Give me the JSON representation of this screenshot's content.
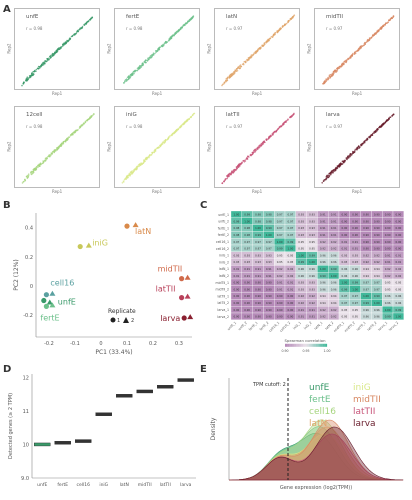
{
  "panel_letters": [
    "A",
    "B",
    "C",
    "D",
    "E"
  ],
  "chart_data": [
    {
      "panel": "A",
      "type": "scatter",
      "facets": [
        {
          "label": "unfE",
          "r_label": "r = 0.98",
          "color": "#3a9a6a"
        },
        {
          "label": "fertE",
          "r_label": "r = 0.98",
          "color": "#6cc08b"
        },
        {
          "label": "latN",
          "r_label": "r = 0.97",
          "color": "#e0a56b"
        },
        {
          "label": "midTII",
          "r_label": "r = 0.97",
          "color": "#d88863"
        },
        {
          "label": "12cell",
          "r_label": "r = 0.98",
          "color": "#a7d57f"
        },
        {
          "label": "iniG",
          "r_label": "r = 0.98",
          "color": "#d9e88a"
        },
        {
          "label": "latTII",
          "r_label": "r = 0.97",
          "color": "#c8567a"
        },
        {
          "label": "larva",
          "r_label": "r = 0.97",
          "color": "#6a1f2e"
        }
      ],
      "xlabel": "Rep1",
      "ylabel": "Rep2"
    },
    {
      "panel": "B",
      "type": "scatter",
      "xlabel": "PC1 (33.4%)",
      "ylabel": "PC2 (12%)",
      "xticks": [
        -0.2,
        -0.1,
        0.0,
        0.1,
        0.2,
        0.3
      ],
      "yticks": [
        0.4,
        0.2,
        0.0,
        -0.2
      ],
      "xlim": [
        -0.25,
        0.35
      ],
      "ylim": [
        -0.35,
        0.5
      ],
      "legend": {
        "title": "Replicate",
        "items": [
          "1",
          "2"
        ]
      },
      "groups": [
        {
          "name": "iniG",
          "color": "#c8c85a",
          "points": [
            [
              -0.08,
              0.27
            ],
            [
              -0.07,
              0.28
            ]
          ]
        },
        {
          "name": "latN",
          "color": "#d98a4a",
          "points": [
            [
              0.1,
              0.41
            ],
            [
              0.11,
              0.42
            ]
          ]
        },
        {
          "name": "midTII",
          "color": "#d06a4a",
          "points": [
            [
              0.31,
              0.05
            ],
            [
              0.31,
              0.06
            ]
          ]
        },
        {
          "name": "latTII",
          "color": "#b8405a",
          "points": [
            [
              0.31,
              -0.08
            ],
            [
              0.31,
              -0.07
            ]
          ]
        },
        {
          "name": "larva",
          "color": "#8a2030",
          "points": [
            [
              0.32,
              -0.22
            ],
            [
              0.32,
              -0.21
            ]
          ]
        },
        {
          "name": "cell16",
          "color": "#5aa0a0",
          "points": [
            [
              -0.21,
              -0.06
            ],
            [
              -0.21,
              -0.05
            ]
          ]
        },
        {
          "name": "unfE",
          "color": "#3a9a6a",
          "points": [
            [
              -0.22,
              -0.1
            ],
            [
              -0.22,
              -0.11
            ]
          ]
        },
        {
          "name": "fertE",
          "color": "#6cc08b",
          "points": [
            [
              -0.21,
              -0.14
            ],
            [
              -0.21,
              -0.13
            ]
          ]
        }
      ]
    },
    {
      "panel": "C",
      "type": "heatmap",
      "legend_title": "Spearman correlation",
      "legend_ticks": [
        "0.90",
        "0.95",
        "1.00"
      ],
      "rows": [
        "unfE_1",
        "unfE_2",
        "fertE_1",
        "fertE_2",
        "cell16_1",
        "cell16_2",
        "iniG_1",
        "iniG_2",
        "latN_1",
        "latN_2",
        "midTII_1",
        "midTII_2",
        "latTII_1",
        "latTII_2",
        "larva_1",
        "larva_2"
      ],
      "values": [
        [
          1.0,
          0.99,
          0.98,
          0.98,
          0.97,
          0.97,
          0.93,
          0.93,
          0.91,
          0.91,
          0.9,
          0.9,
          0.9,
          0.9,
          0.9,
          0.9
        ],
        [
          0.99,
          1.0,
          0.98,
          0.98,
          0.97,
          0.97,
          0.93,
          0.93,
          0.91,
          0.91,
          0.9,
          0.9,
          0.9,
          0.9,
          0.9,
          0.9
        ],
        [
          0.98,
          0.98,
          1.0,
          0.99,
          0.97,
          0.97,
          0.93,
          0.93,
          0.91,
          0.91,
          0.9,
          0.9,
          0.9,
          0.9,
          0.9,
          0.9
        ],
        [
          0.98,
          0.98,
          0.99,
          1.0,
          0.97,
          0.97,
          0.93,
          0.93,
          0.91,
          0.91,
          0.9,
          0.9,
          0.9,
          0.9,
          0.9,
          0.9
        ],
        [
          0.97,
          0.97,
          0.97,
          0.97,
          1.0,
          0.99,
          0.95,
          0.95,
          0.92,
          0.92,
          0.91,
          0.91,
          0.9,
          0.9,
          0.9,
          0.9
        ],
        [
          0.97,
          0.97,
          0.97,
          0.97,
          0.99,
          1.0,
          0.95,
          0.95,
          0.92,
          0.92,
          0.91,
          0.91,
          0.9,
          0.9,
          0.9,
          0.9
        ],
        [
          0.93,
          0.93,
          0.93,
          0.93,
          0.95,
          0.95,
          1.0,
          0.99,
          0.96,
          0.96,
          0.93,
          0.93,
          0.92,
          0.92,
          0.91,
          0.91
        ],
        [
          0.93,
          0.93,
          0.93,
          0.93,
          0.95,
          0.95,
          0.99,
          1.0,
          0.96,
          0.96,
          0.93,
          0.93,
          0.92,
          0.92,
          0.91,
          0.91
        ],
        [
          0.91,
          0.91,
          0.91,
          0.91,
          0.92,
          0.92,
          0.96,
          0.96,
          1.0,
          0.99,
          0.96,
          0.96,
          0.94,
          0.94,
          0.92,
          0.92
        ],
        [
          0.91,
          0.91,
          0.91,
          0.91,
          0.92,
          0.92,
          0.96,
          0.96,
          0.99,
          1.0,
          0.96,
          0.96,
          0.94,
          0.94,
          0.92,
          0.92
        ],
        [
          0.9,
          0.9,
          0.9,
          0.9,
          0.91,
          0.91,
          0.93,
          0.93,
          0.96,
          0.96,
          1.0,
          0.99,
          0.97,
          0.97,
          0.95,
          0.95
        ],
        [
          0.9,
          0.9,
          0.9,
          0.9,
          0.91,
          0.91,
          0.93,
          0.93,
          0.96,
          0.96,
          0.99,
          1.0,
          0.97,
          0.97,
          0.95,
          0.95
        ],
        [
          0.9,
          0.9,
          0.9,
          0.9,
          0.9,
          0.9,
          0.92,
          0.92,
          0.94,
          0.94,
          0.97,
          0.97,
          1.0,
          0.99,
          0.96,
          0.96
        ],
        [
          0.9,
          0.9,
          0.9,
          0.9,
          0.9,
          0.9,
          0.92,
          0.92,
          0.94,
          0.94,
          0.97,
          0.97,
          0.99,
          1.0,
          0.96,
          0.96
        ],
        [
          0.9,
          0.9,
          0.9,
          0.9,
          0.9,
          0.9,
          0.91,
          0.91,
          0.92,
          0.92,
          0.95,
          0.95,
          0.96,
          0.96,
          1.0,
          0.99
        ],
        [
          0.9,
          0.9,
          0.9,
          0.9,
          0.9,
          0.9,
          0.91,
          0.91,
          0.92,
          0.92,
          0.95,
          0.95,
          0.96,
          0.96,
          0.99,
          1.0
        ]
      ]
    },
    {
      "panel": "D",
      "type": "bar",
      "ylabel": "Detected genes (≥ 2 TPM)",
      "categories": [
        "unfE",
        "fertE",
        "cell16",
        "iniG",
        "latN",
        "midTII",
        "latTII",
        "larva"
      ],
      "values": [
        10000,
        10050,
        10100,
        10900,
        11450,
        11580,
        11720,
        11920
      ],
      "colors": [
        "#3a9a6a",
        "#333333",
        "#333333",
        "#333333",
        "#333333",
        "#333333",
        "#333333",
        "#333333"
      ],
      "ylim": [
        9000,
        12100
      ],
      "yticks": [
        "9.0",
        "10",
        "11",
        "12"
      ]
    },
    {
      "panel": "E",
      "type": "area",
      "xlabel": "Gene expression (log2(TPM))",
      "ylabel": "Density",
      "threshold_label": "TPM cutoff: 2",
      "legend": [
        "unfE",
        "iniG",
        "fertE",
        "midTII",
        "cell16",
        "latTII",
        "latN",
        "larva"
      ],
      "series": [
        {
          "name": "unfE",
          "color": "#3a9a6a"
        },
        {
          "name": "fertE",
          "color": "#6cc08b"
        },
        {
          "name": "cell16",
          "color": "#a7d57f"
        },
        {
          "name": "iniG",
          "color": "#d9e88a"
        },
        {
          "name": "latN",
          "color": "#e0a56b"
        },
        {
          "name": "midTII",
          "color": "#d88863"
        },
        {
          "name": "latTII",
          "color": "#c8567a"
        },
        {
          "name": "larva",
          "color": "#6a1f2e"
        }
      ]
    }
  ]
}
